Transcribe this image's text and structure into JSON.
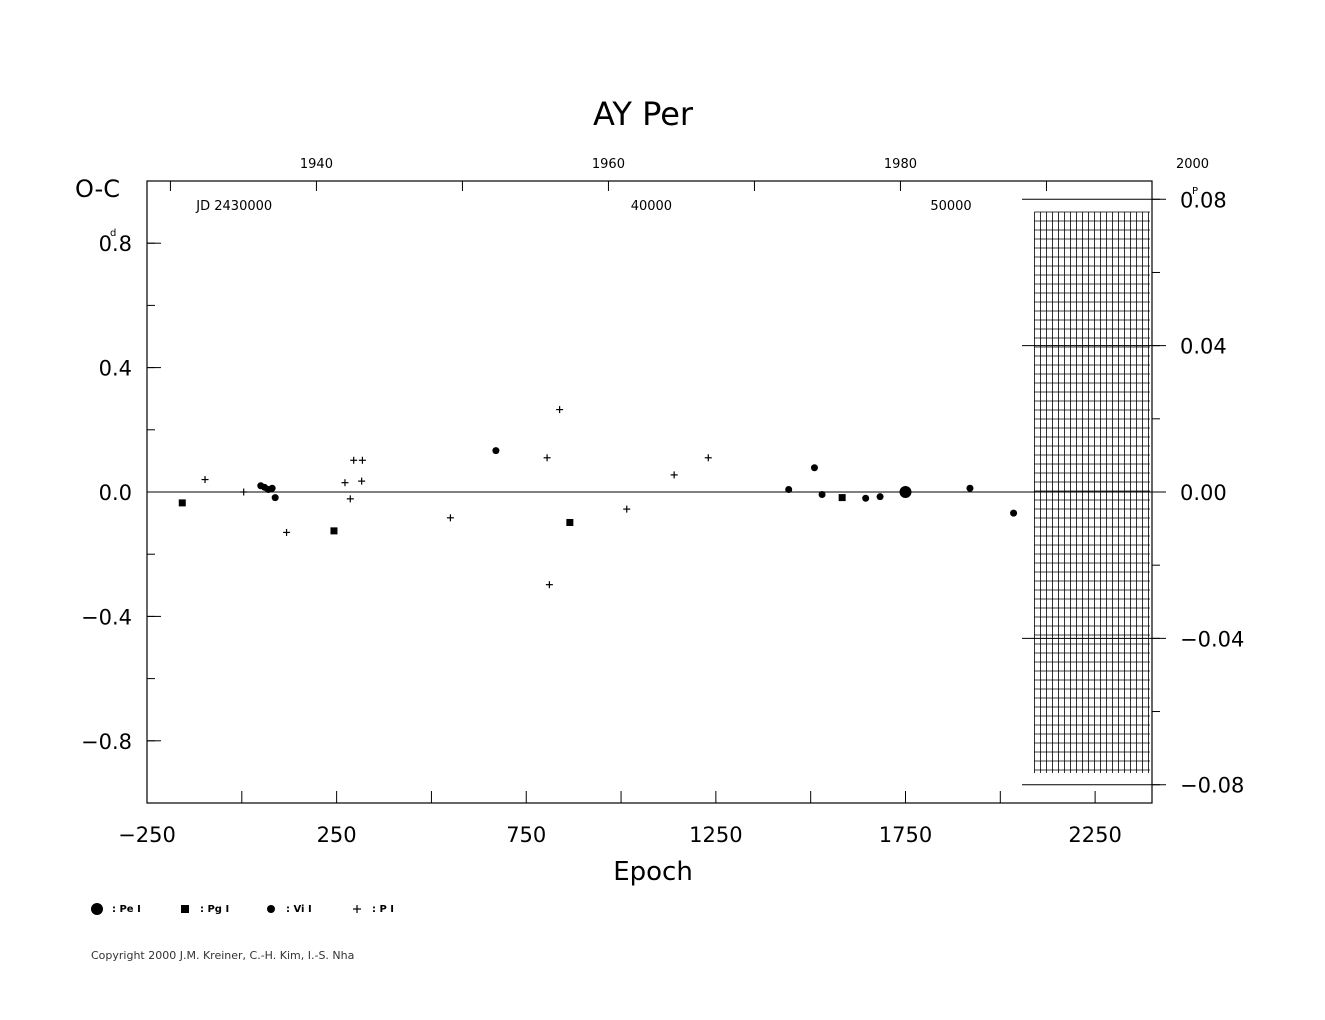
{
  "chart_data": {
    "type": "scatter",
    "title": "AY Per",
    "xlabel": "Epoch",
    "ylabel": "O-C",
    "ylabel_unit": "d",
    "right_axis_unit": "P",
    "xlim": [
      -250,
      2400
    ],
    "ylim": [
      -1.0,
      1.0
    ],
    "right_ylim": [
      -0.085,
      0.085
    ],
    "x_ticks": [
      -250,
      250,
      750,
      1250,
      1750,
      2250
    ],
    "x_tick_labels": [
      "−250",
      "250",
      "750",
      "1250",
      "1750",
      "2250"
    ],
    "y_ticks": [
      0.8,
      0.4,
      0.0,
      -0.4,
      -0.8
    ],
    "y_tick_labels": [
      "0.8",
      "0.4",
      "0.0",
      "−0.4",
      "−0.8"
    ],
    "right_ticks": [
      0.08,
      0.04,
      0.0,
      -0.04,
      -0.08
    ],
    "right_tick_labels": [
      "0.08",
      "0.04",
      "0.00",
      "−0.04",
      "−0.08"
    ],
    "top_year_ticks": [
      1940,
      1960,
      1980,
      2000
    ],
    "top_year_labels": [
      "1940",
      "1960",
      "1980",
      "2000"
    ],
    "jd_labels": [
      {
        "epoch": -20,
        "text": "JD 2430000"
      },
      {
        "epoch": 1080,
        "text": "40000"
      },
      {
        "epoch": 1870,
        "text": "50000"
      }
    ],
    "grid": false,
    "hatch_region_from_epoch": 2090,
    "series": [
      {
        "name": ": Pe I",
        "marker": "big-dot",
        "points": [
          [
            1750,
            0.0
          ]
        ]
      },
      {
        "name": ": Pg I",
        "marker": "square",
        "points": [
          [
            -157,
            -0.035
          ],
          [
            243,
            -0.125
          ],
          [
            865,
            -0.098
          ],
          [
            1583,
            -0.018
          ]
        ]
      },
      {
        "name": ": Vi I",
        "marker": "dot",
        "points": [
          [
            50,
            0.02
          ],
          [
            60,
            0.015
          ],
          [
            70,
            0.008
          ],
          [
            80,
            0.012
          ],
          [
            88,
            -0.018
          ],
          [
            670,
            0.133
          ],
          [
            1442,
            0.008
          ],
          [
            1510,
            0.078
          ],
          [
            1530,
            -0.008
          ],
          [
            1645,
            -0.02
          ],
          [
            1683,
            -0.015
          ],
          [
            1920,
            0.012
          ],
          [
            2035,
            -0.068
          ]
        ]
      },
      {
        "name": ": P I",
        "marker": "plus",
        "points": [
          [
            -97,
            0.04
          ],
          [
            5,
            0.0
          ],
          [
            118,
            -0.13
          ],
          [
            272,
            0.03
          ],
          [
            286,
            -0.022
          ],
          [
            295,
            0.102
          ],
          [
            318,
            0.102
          ],
          [
            316,
            0.035
          ],
          [
            550,
            -0.083
          ],
          [
            805,
            0.11
          ],
          [
            811,
            -0.298
          ],
          [
            838,
            0.265
          ],
          [
            1015,
            -0.055
          ],
          [
            1140,
            0.055
          ],
          [
            1230,
            0.11
          ]
        ]
      }
    ]
  },
  "copyright": "Copyright 2000 J.M. Kreiner, C.-H. Kim, I.-S. Nha"
}
